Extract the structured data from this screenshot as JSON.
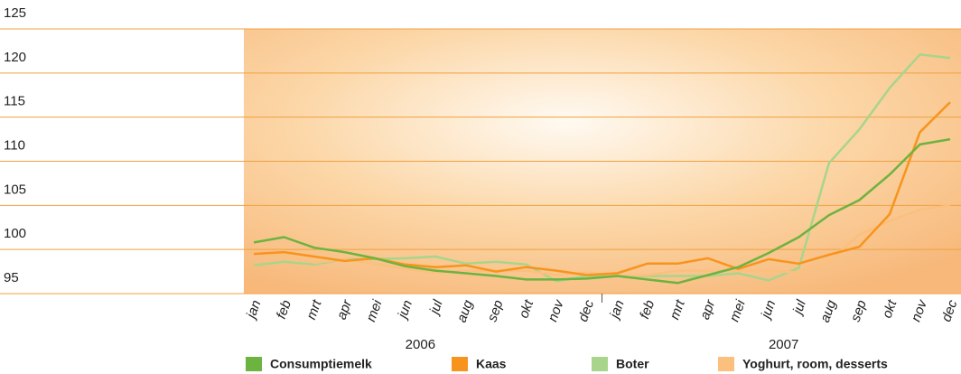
{
  "chart_data": {
    "type": "line",
    "categories": [
      "jan",
      "feb",
      "mrt",
      "apr",
      "mei",
      "jun",
      "jul",
      "aug",
      "sep",
      "okt",
      "nov",
      "dec",
      "jan",
      "feb",
      "mrt",
      "apr",
      "mei",
      "jun",
      "jul",
      "aug",
      "sep",
      "okt",
      "nov",
      "dec"
    ],
    "years": [
      "2006",
      "2007"
    ],
    "series": [
      {
        "name": "Consumptiemelk",
        "color": "#6cb33f",
        "values": [
          100.8,
          101.4,
          100.2,
          99.7,
          99.0,
          98.1,
          97.6,
          97.3,
          97.0,
          96.6,
          96.6,
          96.7,
          97.0,
          96.6,
          96.2,
          97.1,
          98.0,
          99.6,
          101.4,
          103.9,
          105.6,
          108.5,
          111.9,
          112.5
        ]
      },
      {
        "name": "Kaas",
        "color": "#f7941d",
        "values": [
          99.5,
          99.7,
          99.2,
          98.7,
          99.0,
          98.3,
          98.0,
          98.2,
          97.5,
          98.0,
          97.6,
          97.1,
          97.3,
          98.4,
          98.4,
          99.0,
          97.8,
          98.9,
          98.4,
          99.4,
          100.3,
          104.0,
          113.3,
          116.7
        ]
      },
      {
        "name": "Boter",
        "color": "#a8d58b",
        "values": [
          98.2,
          98.6,
          98.3,
          98.9,
          98.9,
          99.0,
          99.2,
          98.4,
          98.6,
          98.3,
          96.4,
          97.0,
          97.0,
          97.0,
          97.0,
          97.0,
          97.3,
          96.5,
          97.9,
          109.8,
          113.6,
          118.3,
          122.1,
          121.7
        ]
      },
      {
        "name": "Yoghurt, room, desserts",
        "color": "#fbbf7e",
        "values": [
          99.6,
          99.3,
          98.5,
          98.9,
          98.4,
          97.8,
          97.4,
          97.6,
          97.6,
          97.6,
          97.1,
          97.4,
          97.0,
          97.1,
          97.6,
          97.6,
          97.6,
          97.6,
          97.4,
          98.6,
          101.7,
          103.2,
          104.5,
          105.0
        ]
      }
    ],
    "ylim": [
      95,
      125
    ],
    "yticks": [
      95,
      100,
      105,
      110,
      115,
      120,
      125
    ],
    "grid": true
  }
}
